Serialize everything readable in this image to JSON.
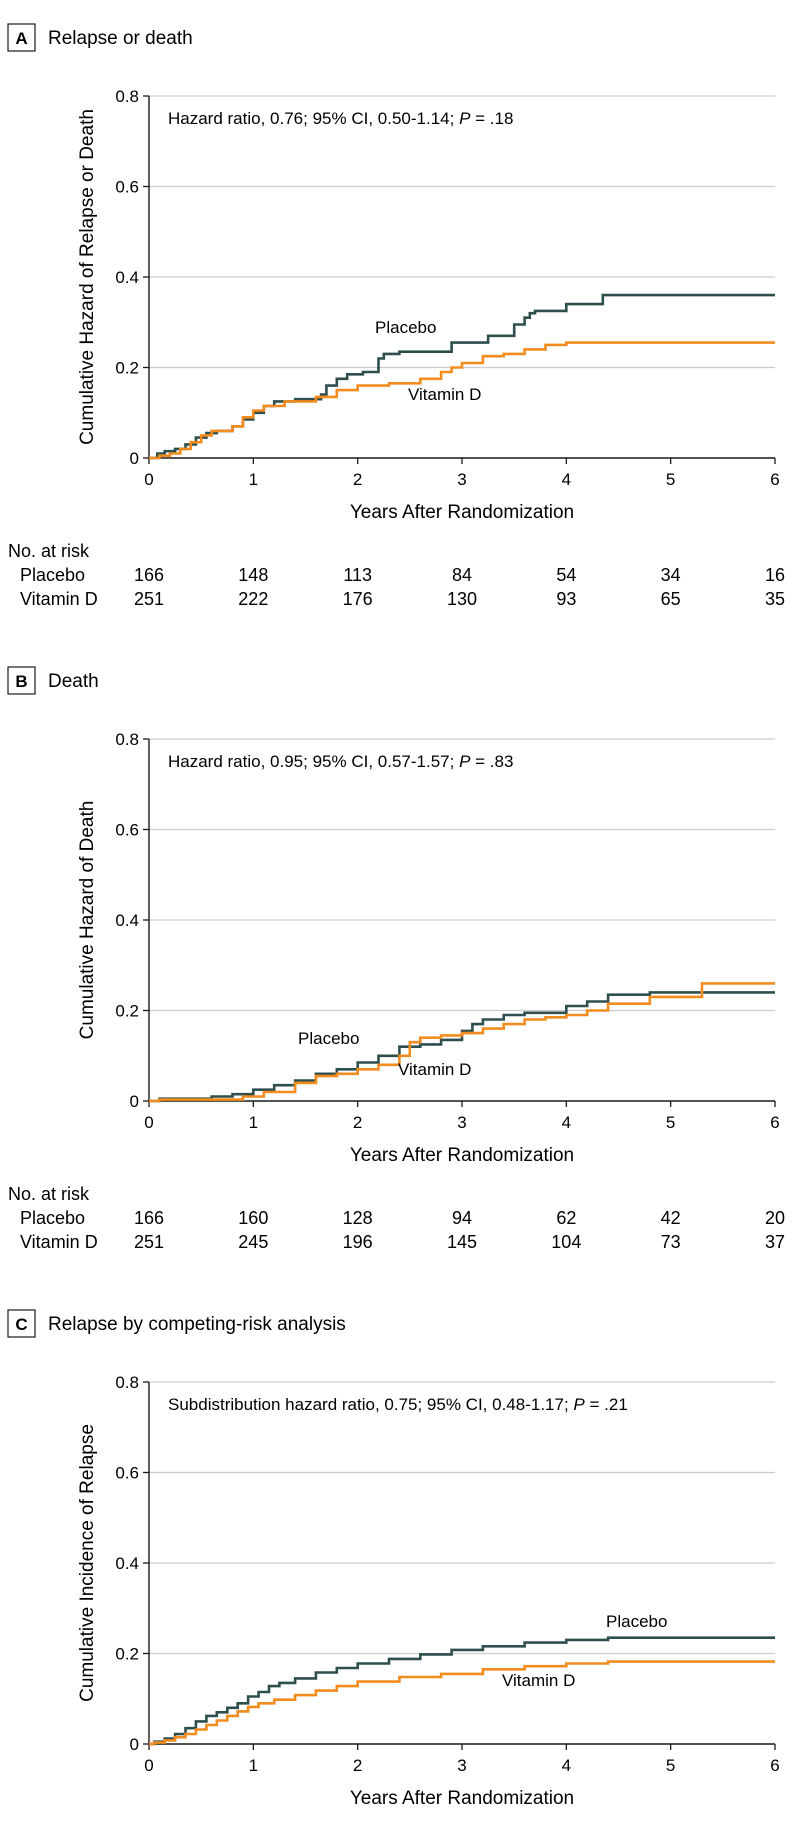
{
  "colors": {
    "placebo": "#2f4f4f",
    "vitamin_d": "#f28c1e",
    "grid": "#cccccc",
    "axis": "#1a1a1a"
  },
  "chart_data": [
    {
      "type": "line",
      "panel_letter": "A",
      "panel_title": "Relapse or death",
      "annotation_prefix": "Hazard ratio, 0.76; 95% CI, 0.50-1.14; ",
      "annotation_p_label": "P",
      "annotation_p_value": " = .18",
      "ylabel": "Cumulative Hazard of Relapse or Death",
      "xlabel": "Years After Randomization",
      "xlim": [
        0,
        6
      ],
      "ylim": [
        0,
        0.8
      ],
      "x_ticks": [
        "0",
        "1",
        "2",
        "3",
        "4",
        "5",
        "6"
      ],
      "y_ticks": [
        "0",
        "0.2",
        "0.4",
        "0.6",
        "0.8"
      ],
      "series_label_placebo": "Placebo",
      "series_label_vitamin_d": "Vitamin D",
      "series": [
        {
          "name": "Placebo",
          "step": true,
          "x": [
            0.08,
            0.15,
            0.25,
            0.35,
            0.45,
            0.55,
            0.65,
            0.8,
            0.9,
            1.0,
            1.1,
            1.2,
            1.4,
            1.6,
            1.65,
            1.7,
            1.8,
            1.9,
            2.05,
            2.2,
            2.25,
            2.4,
            2.6,
            2.9,
            3.1,
            3.25,
            3.35,
            3.5,
            3.6,
            3.65,
            3.7,
            3.9,
            4.0,
            4.35,
            6.0
          ],
          "values": [
            0.01,
            0.015,
            0.02,
            0.03,
            0.045,
            0.055,
            0.06,
            0.07,
            0.085,
            0.1,
            0.115,
            0.125,
            0.13,
            0.13,
            0.14,
            0.16,
            0.175,
            0.185,
            0.19,
            0.22,
            0.23,
            0.235,
            0.235,
            0.255,
            0.255,
            0.27,
            0.27,
            0.295,
            0.31,
            0.32,
            0.325,
            0.325,
            0.34,
            0.36,
            0.36
          ]
        },
        {
          "name": "Vitamin D",
          "step": true,
          "x": [
            0.1,
            0.2,
            0.3,
            0.4,
            0.5,
            0.6,
            0.8,
            0.9,
            1.0,
            1.1,
            1.3,
            1.6,
            1.8,
            2.0,
            2.3,
            2.6,
            2.8,
            2.9,
            3.0,
            3.2,
            3.4,
            3.6,
            3.8,
            4.0,
            6.0
          ],
          "values": [
            0.005,
            0.01,
            0.02,
            0.035,
            0.05,
            0.06,
            0.07,
            0.09,
            0.105,
            0.115,
            0.125,
            0.135,
            0.15,
            0.16,
            0.165,
            0.175,
            0.19,
            0.2,
            0.21,
            0.225,
            0.23,
            0.24,
            0.25,
            0.255,
            0.255
          ]
        }
      ],
      "at_risk": {
        "header": "No. at risk",
        "rows": [
          {
            "label": "Placebo",
            "values": [
              "166",
              "148",
              "113",
              "84",
              "54",
              "34",
              "16"
            ]
          },
          {
            "label": "Vitamin D",
            "values": [
              "251",
              "222",
              "176",
              "130",
              "93",
              "65",
              "35"
            ]
          }
        ]
      }
    },
    {
      "type": "line",
      "panel_letter": "B",
      "panel_title": "Death",
      "annotation_prefix": "Hazard ratio, 0.95; 95% CI, 0.57-1.57; ",
      "annotation_p_label": "P",
      "annotation_p_value": " = .83",
      "ylabel": "Cumulative Hazard of Death",
      "xlabel": "Years After Randomization",
      "xlim": [
        0,
        6
      ],
      "ylim": [
        0,
        0.8
      ],
      "x_ticks": [
        "0",
        "1",
        "2",
        "3",
        "4",
        "5",
        "6"
      ],
      "y_ticks": [
        "0",
        "0.2",
        "0.4",
        "0.6",
        "0.8"
      ],
      "series_label_placebo": "Placebo",
      "series_label_vitamin_d": "Vitamin D",
      "series": [
        {
          "name": "Placebo",
          "step": true,
          "x": [
            0.1,
            0.6,
            0.8,
            1.0,
            1.2,
            1.4,
            1.6,
            1.8,
            2.0,
            2.2,
            2.4,
            2.6,
            2.8,
            3.0,
            3.1,
            3.2,
            3.4,
            3.6,
            4.0,
            4.2,
            4.4,
            4.8,
            5.2,
            6.0
          ],
          "values": [
            0.005,
            0.01,
            0.015,
            0.025,
            0.035,
            0.045,
            0.06,
            0.07,
            0.085,
            0.1,
            0.12,
            0.125,
            0.135,
            0.155,
            0.17,
            0.18,
            0.19,
            0.195,
            0.21,
            0.22,
            0.235,
            0.24,
            0.24,
            0.24
          ]
        },
        {
          "name": "Vitamin D",
          "step": true,
          "x": [
            0.1,
            0.9,
            1.1,
            1.4,
            1.6,
            1.8,
            2.0,
            2.2,
            2.4,
            2.5,
            2.6,
            2.8,
            3.0,
            3.2,
            3.4,
            3.6,
            3.8,
            4.0,
            4.2,
            4.4,
            4.8,
            5.3,
            6.0
          ],
          "values": [
            0.003,
            0.01,
            0.02,
            0.04,
            0.055,
            0.06,
            0.07,
            0.08,
            0.1,
            0.13,
            0.14,
            0.145,
            0.15,
            0.16,
            0.17,
            0.18,
            0.185,
            0.19,
            0.2,
            0.215,
            0.23,
            0.26,
            0.26
          ]
        }
      ],
      "at_risk": {
        "header": "No. at risk",
        "rows": [
          {
            "label": "Placebo",
            "values": [
              "166",
              "160",
              "128",
              "94",
              "62",
              "42",
              "20"
            ]
          },
          {
            "label": "Vitamin D",
            "values": [
              "251",
              "245",
              "196",
              "145",
              "104",
              "73",
              "37"
            ]
          }
        ]
      }
    },
    {
      "type": "line",
      "panel_letter": "C",
      "panel_title": "Relapse by competing-risk analysis",
      "annotation_prefix": "Subdistribution hazard ratio, 0.75; 95% CI, 0.48-1.17; ",
      "annotation_p_label": "P",
      "annotation_p_value": " = .21",
      "ylabel": "Cumulative Incidence of Relapse",
      "xlabel": "Years After Randomization",
      "xlim": [
        0,
        6
      ],
      "ylim": [
        0,
        0.8
      ],
      "x_ticks": [
        "0",
        "1",
        "2",
        "3",
        "4",
        "5",
        "6"
      ],
      "y_ticks": [
        "0",
        "0.2",
        "0.4",
        "0.6",
        "0.8"
      ],
      "series_label_placebo": "Placebo",
      "series_label_vitamin_d": "Vitamin D",
      "series": [
        {
          "name": "Placebo",
          "step": true,
          "x": [
            0.05,
            0.15,
            0.25,
            0.35,
            0.45,
            0.55,
            0.65,
            0.75,
            0.85,
            0.95,
            1.05,
            1.15,
            1.25,
            1.4,
            1.6,
            1.8,
            2.0,
            2.3,
            2.6,
            2.9,
            3.2,
            3.6,
            4.0,
            4.4,
            6.0
          ],
          "values": [
            0.005,
            0.012,
            0.022,
            0.035,
            0.05,
            0.062,
            0.07,
            0.08,
            0.09,
            0.105,
            0.115,
            0.128,
            0.135,
            0.145,
            0.158,
            0.168,
            0.178,
            0.188,
            0.198,
            0.208,
            0.216,
            0.224,
            0.23,
            0.235,
            0.235
          ]
        },
        {
          "name": "Vitamin D",
          "step": true,
          "x": [
            0.05,
            0.15,
            0.25,
            0.35,
            0.45,
            0.55,
            0.65,
            0.75,
            0.85,
            0.95,
            1.05,
            1.2,
            1.4,
            1.6,
            1.8,
            2.0,
            2.4,
            2.8,
            3.2,
            3.6,
            4.0,
            4.4,
            6.0
          ],
          "values": [
            0.003,
            0.008,
            0.015,
            0.022,
            0.032,
            0.042,
            0.052,
            0.062,
            0.072,
            0.082,
            0.09,
            0.098,
            0.108,
            0.118,
            0.128,
            0.138,
            0.148,
            0.155,
            0.165,
            0.172,
            0.178,
            0.182,
            0.182
          ]
        }
      ],
      "at_risk": null
    }
  ]
}
